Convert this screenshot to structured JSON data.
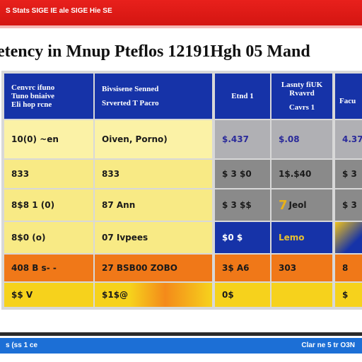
{
  "header": {
    "banner_text": "S Stats SIGE IE  ale  SIGE Hie SE",
    "title": "etency in Mnup Pteflos 12191Hgh 05 Mand"
  },
  "table": {
    "headers": [
      [
        "Cenvrc ifuno",
        "Tuno bniaive",
        "Eli hop rcne"
      ],
      [
        "Bivsisene Senned",
        "Srverted T Pacro"
      ],
      [
        "Etnd 1"
      ],
      [
        "Lasnty fiUK",
        "Rvavrd",
        "Cavrs 1"
      ],
      [
        "Facu"
      ]
    ],
    "rows": [
      [
        "10(0) ~en",
        "Oiven, Porno)",
        "$.437",
        "$.08",
        "4.37"
      ],
      [
        "833",
        "833",
        "$ 3 $0",
        "1$.$40",
        "$ 3"
      ],
      [
        "8$8 1 (0)",
        "87 Ann",
        "$ 3 $$",
        "Jeol",
        "$ 3"
      ],
      [
        "8$0 (o)",
        "07 Ivpees",
        "$0 $",
        "Lemo",
        ""
      ],
      [
        "408 B s- -",
        "27 BSB00 ZOBO",
        "3$ A6",
        "303",
        "8"
      ],
      [
        "$$ V",
        "$1$@",
        "0$",
        "",
        "$"
      ]
    ],
    "row4_mark": "7"
  },
  "footer": {
    "left_text": "s (ss 1 ce",
    "right_text": "Clar ne 5 tr O3N"
  },
  "colors": {
    "banner": "#d41511",
    "header_blue": "#1633a8",
    "light_yellow": "#fbf2a6",
    "mid_yellow": "#f8ea85",
    "gray": "#8a8a8a",
    "orange": "#f07818",
    "bright_yellow": "#f6d21c",
    "footer_blue": "#1c6fd6"
  }
}
